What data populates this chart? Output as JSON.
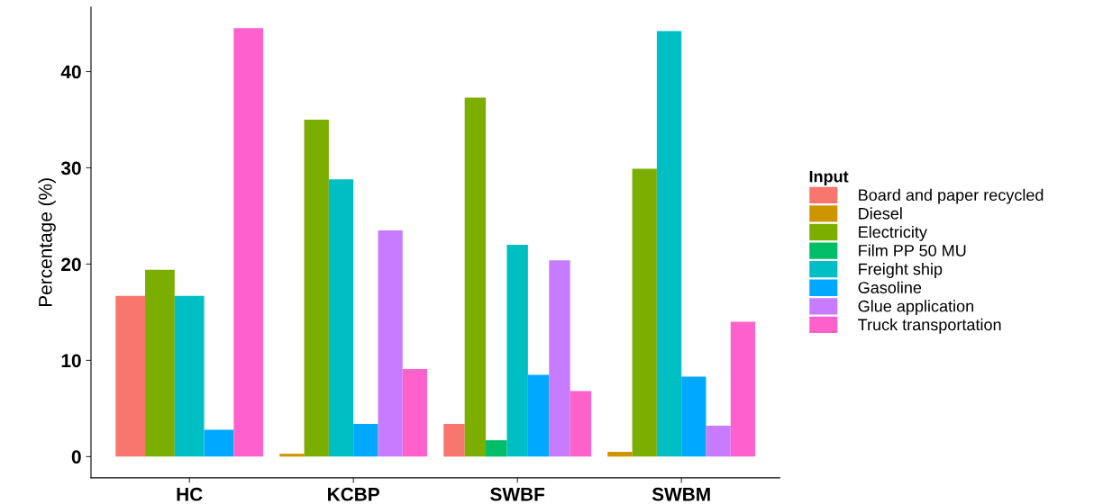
{
  "chart_data": {
    "type": "bar",
    "ylabel": "Percentage (%)",
    "legend_title": "Input",
    "legend": "right",
    "grid": false,
    "categories": [
      "HC",
      "KCBP",
      "SWBF",
      "SWBM"
    ],
    "ylim": [
      -2.2,
      46.7
    ],
    "yticks": [
      0,
      10,
      20,
      30,
      40
    ],
    "series": [
      {
        "name": "Board and paper recycled",
        "color": "#f8766d",
        "values": [
          16.7,
          null,
          3.4,
          null
        ]
      },
      {
        "name": "Diesel",
        "color": "#cd9600",
        "values": [
          null,
          0.3,
          null,
          0.5
        ]
      },
      {
        "name": "Electricity",
        "color": "#7cae00",
        "values": [
          19.4,
          35.0,
          37.3,
          29.9
        ]
      },
      {
        "name": "Film PP 50 MU",
        "color": "#00be67",
        "values": [
          null,
          null,
          1.7,
          null
        ]
      },
      {
        "name": "Freight ship",
        "color": "#00bfc4",
        "values": [
          16.7,
          28.8,
          22.0,
          44.2
        ]
      },
      {
        "name": "Gasoline",
        "color": "#00a9ff",
        "values": [
          2.8,
          3.4,
          8.5,
          8.3
        ]
      },
      {
        "name": "Glue application",
        "color": "#c77cff",
        "values": [
          null,
          23.5,
          20.4,
          3.2
        ]
      },
      {
        "name": "Truck transportation",
        "color": "#ff61cc",
        "values": [
          44.5,
          9.1,
          6.8,
          14.0
        ]
      }
    ]
  }
}
